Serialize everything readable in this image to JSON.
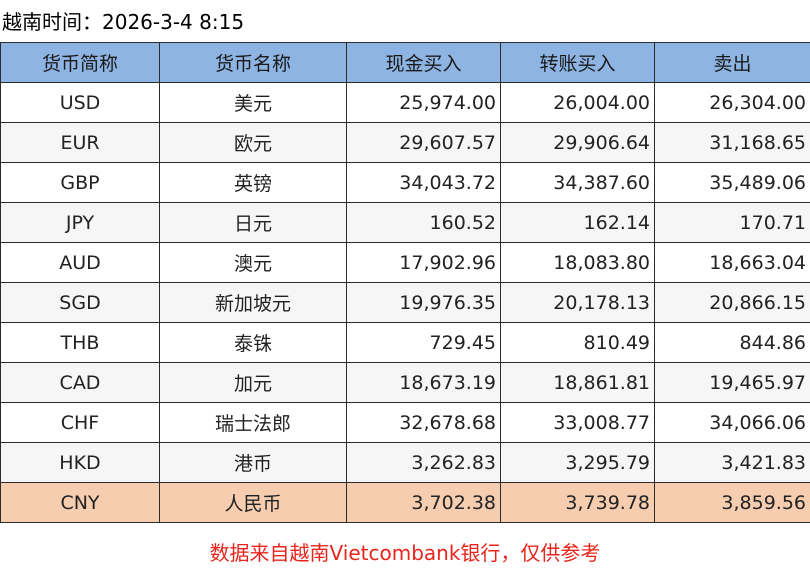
{
  "time_line": "越南时间：2026-3-4 8:15",
  "table": {
    "headers": [
      "货币简称",
      "货币名称",
      "现金买入",
      "转账买入",
      "卖出"
    ],
    "rows": [
      {
        "code": "USD",
        "name": "美元",
        "cash_buy": "25,974.00",
        "transfer_buy": "26,004.00",
        "sell": "26,304.00"
      },
      {
        "code": "EUR",
        "name": "欧元",
        "cash_buy": "29,607.57",
        "transfer_buy": "29,906.64",
        "sell": "31,168.65"
      },
      {
        "code": "GBP",
        "name": "英镑",
        "cash_buy": "34,043.72",
        "transfer_buy": "34,387.60",
        "sell": "35,489.06"
      },
      {
        "code": "JPY",
        "name": "日元",
        "cash_buy": "160.52",
        "transfer_buy": "162.14",
        "sell": "170.71"
      },
      {
        "code": "AUD",
        "name": "澳元",
        "cash_buy": "17,902.96",
        "transfer_buy": "18,083.80",
        "sell": "18,663.04"
      },
      {
        "code": "SGD",
        "name": "新加坡元",
        "cash_buy": "19,976.35",
        "transfer_buy": "20,178.13",
        "sell": "20,866.15"
      },
      {
        "code": "THB",
        "name": "泰铢",
        "cash_buy": "729.45",
        "transfer_buy": "810.49",
        "sell": "844.86"
      },
      {
        "code": "CAD",
        "name": "加元",
        "cash_buy": "18,673.19",
        "transfer_buy": "18,861.81",
        "sell": "19,465.97"
      },
      {
        "code": "CHF",
        "name": "瑞士法郎",
        "cash_buy": "32,678.68",
        "transfer_buy": "33,008.77",
        "sell": "34,066.06"
      },
      {
        "code": "HKD",
        "name": "港币",
        "cash_buy": "3,262.83",
        "transfer_buy": "3,295.79",
        "sell": "3,421.83"
      },
      {
        "code": "CNY",
        "name": "人民币",
        "cash_buy": "3,702.38",
        "transfer_buy": "3,739.78",
        "sell": "3,859.56"
      }
    ]
  },
  "footer_note": "数据来自越南Vietcombank银行，仅供参考",
  "colors": {
    "header_bg": "#8eb4e3",
    "highlight_row_bg": "#f7cdb0",
    "footer_text": "#e8251c"
  }
}
